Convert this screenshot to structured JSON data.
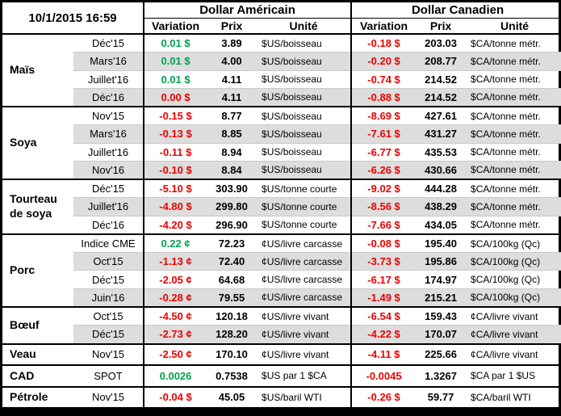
{
  "header": {
    "timestamp": "10/1/2015 16:59",
    "us_title": "Dollar Américain",
    "ca_title": "Dollar Canadien",
    "variation_label": "Variation",
    "prix_label": "Prix",
    "unite_label": "Unité"
  },
  "colors": {
    "positive": "#00A14F",
    "negative": "#EE0000",
    "row_alt": "#DDDDDD"
  },
  "groups": [
    {
      "name": "Maïs",
      "rows": [
        {
          "month": "Déc'15",
          "us_var": "0.01 $",
          "us_sign": "pos",
          "us_prix": "3.89",
          "us_unite": "$US/boisseau",
          "ca_var": "-0.18 $",
          "ca_sign": "neg",
          "ca_prix": "203.03",
          "ca_unite": "$CA/tonne métr."
        },
        {
          "month": "Mars'16",
          "us_var": "0.01 $",
          "us_sign": "pos",
          "us_prix": "4.00",
          "us_unite": "$US/boisseau",
          "ca_var": "-0.20 $",
          "ca_sign": "neg",
          "ca_prix": "208.77",
          "ca_unite": "$CA/tonne métr."
        },
        {
          "month": "Juillet'16",
          "us_var": "0.01 $",
          "us_sign": "pos",
          "us_prix": "4.11",
          "us_unite": "$US/boisseau",
          "ca_var": "-0.74 $",
          "ca_sign": "neg",
          "ca_prix": "214.52",
          "ca_unite": "$CA/tonne métr."
        },
        {
          "month": "Déc'16",
          "us_var": "0.00 $",
          "us_sign": "neg",
          "us_prix": "4.11",
          "us_unite": "$US/boisseau",
          "ca_var": "-0.88 $",
          "ca_sign": "neg",
          "ca_prix": "214.52",
          "ca_unite": "$CA/tonne métr."
        }
      ]
    },
    {
      "name": "Soya",
      "rows": [
        {
          "month": "Nov'15",
          "us_var": "-0.15 $",
          "us_sign": "neg",
          "us_prix": "8.77",
          "us_unite": "$US/boisseau",
          "ca_var": "-8.69 $",
          "ca_sign": "neg",
          "ca_prix": "427.61",
          "ca_unite": "$CA/tonne métr."
        },
        {
          "month": "Mars'16",
          "us_var": "-0.13 $",
          "us_sign": "neg",
          "us_prix": "8.85",
          "us_unite": "$US/boisseau",
          "ca_var": "-7.61 $",
          "ca_sign": "neg",
          "ca_prix": "431.27",
          "ca_unite": "$CA/tonne métr."
        },
        {
          "month": "Juillet'16",
          "us_var": "-0.11 $",
          "us_sign": "neg",
          "us_prix": "8.94",
          "us_unite": "$US/boisseau",
          "ca_var": "-6.77 $",
          "ca_sign": "neg",
          "ca_prix": "435.53",
          "ca_unite": "$CA/tonne métr."
        },
        {
          "month": "Nov'16",
          "us_var": "-0.10 $",
          "us_sign": "neg",
          "us_prix": "8.84",
          "us_unite": "$US/boisseau",
          "ca_var": "-6.26 $",
          "ca_sign": "neg",
          "ca_prix": "430.66",
          "ca_unite": "$CA/tonne métr."
        }
      ]
    },
    {
      "name": "Tourteau de soya",
      "rows": [
        {
          "month": "Déc'15",
          "us_var": "-5.10 $",
          "us_sign": "neg",
          "us_prix": "303.90",
          "us_unite": "$US/tonne courte",
          "ca_var": "-9.02 $",
          "ca_sign": "neg",
          "ca_prix": "444.28",
          "ca_unite": "$CA/tonne métr."
        },
        {
          "month": "Juillet'16",
          "us_var": "-4.80 $",
          "us_sign": "neg",
          "us_prix": "299.80",
          "us_unite": "$US/tonne courte",
          "ca_var": "-8.56 $",
          "ca_sign": "neg",
          "ca_prix": "438.29",
          "ca_unite": "$CA/tonne métr."
        },
        {
          "month": "Déc'16",
          "us_var": "-4.20 $",
          "us_sign": "neg",
          "us_prix": "296.90",
          "us_unite": "$US/tonne courte",
          "ca_var": "-7.66 $",
          "ca_sign": "neg",
          "ca_prix": "434.05",
          "ca_unite": "$CA/tonne métr."
        }
      ]
    },
    {
      "name": "Porc",
      "rows": [
        {
          "month": "Indice CME",
          "us_var": "0.22 ¢",
          "us_sign": "pos",
          "us_prix": "72.23",
          "us_unite": "¢US/livre carcasse",
          "ca_var": "-0.08 $",
          "ca_sign": "neg",
          "ca_prix": "195.40",
          "ca_unite": "$CA/100kg (Qc)"
        },
        {
          "month": "Oct'15",
          "us_var": "-1.13 ¢",
          "us_sign": "neg",
          "us_prix": "72.40",
          "us_unite": "¢US/livre carcasse",
          "ca_var": "-3.73 $",
          "ca_sign": "neg",
          "ca_prix": "195.86",
          "ca_unite": "$CA/100kg (Qc)"
        },
        {
          "month": "Déc'15",
          "us_var": "-2.05 ¢",
          "us_sign": "neg",
          "us_prix": "64.68",
          "us_unite": "¢US/livre carcasse",
          "ca_var": "-6.17 $",
          "ca_sign": "neg",
          "ca_prix": "174.97",
          "ca_unite": "$CA/100kg (Qc)"
        },
        {
          "month": "Juin'16",
          "us_var": "-0.28 ¢",
          "us_sign": "neg",
          "us_prix": "79.55",
          "us_unite": "¢US/livre carcasse",
          "ca_var": "-1.49 $",
          "ca_sign": "neg",
          "ca_prix": "215.21",
          "ca_unite": "$CA/100kg (Qc)"
        }
      ]
    },
    {
      "name": "Bœuf",
      "rows": [
        {
          "month": "Oct'15",
          "us_var": "-4.50 ¢",
          "us_sign": "neg",
          "us_prix": "120.18",
          "us_unite": "¢US/livre vivant",
          "ca_var": "-6.54 $",
          "ca_sign": "neg",
          "ca_prix": "159.43",
          "ca_unite": "¢CA/livre vivant"
        },
        {
          "month": "Déc'15",
          "us_var": "-2.73 ¢",
          "us_sign": "neg",
          "us_prix": "128.20",
          "us_unite": "¢US/livre vivant",
          "ca_var": "-4.22 $",
          "ca_sign": "neg",
          "ca_prix": "170.07",
          "ca_unite": "¢CA/livre vivant"
        }
      ]
    },
    {
      "name": "Veau",
      "rows": [
        {
          "month": "Nov'15",
          "us_var": "-2.50 ¢",
          "us_sign": "neg",
          "us_prix": "170.10",
          "us_unite": "¢US/livre vivant",
          "ca_var": "-4.11 $",
          "ca_sign": "neg",
          "ca_prix": "225.66",
          "ca_unite": "¢CA/livre vivant"
        }
      ]
    },
    {
      "name": "CAD",
      "rows": [
        {
          "month": "SPOT",
          "us_var": "0.0026",
          "us_sign": "pos",
          "us_prix": "0.7538",
          "us_unite": "$US par 1 $CA",
          "ca_var": "-0.0045",
          "ca_sign": "neg",
          "ca_prix": "1.3267",
          "ca_unite": "$CA par 1 $US"
        }
      ]
    },
    {
      "name": "Pétrole",
      "rows": [
        {
          "month": "Nov'15",
          "us_var": "-0.04 $",
          "us_sign": "neg",
          "us_prix": "45.05",
          "us_unite": "$US/baril WTI",
          "ca_var": "-0.26 $",
          "ca_sign": "neg",
          "ca_prix": "59.77",
          "ca_unite": "$CA/baril WTI"
        }
      ]
    }
  ]
}
